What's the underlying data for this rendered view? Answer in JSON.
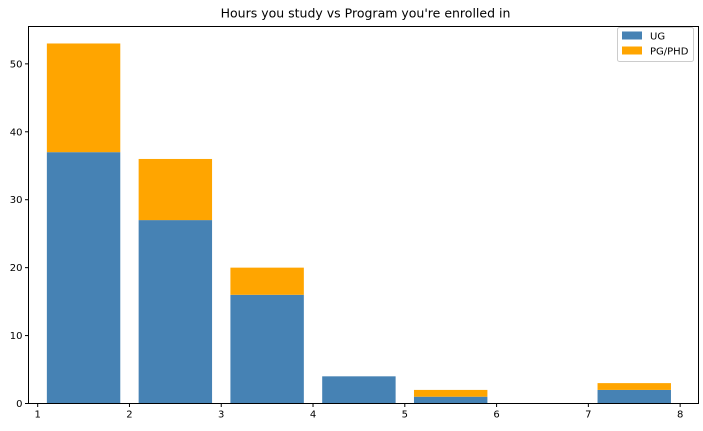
{
  "chart_data": {
    "type": "bar",
    "stacked": true,
    "title": "Hours you study vs Program you're enrolled in",
    "xlabel": "",
    "ylabel": "",
    "xlim": [
      0.9,
      8.2
    ],
    "ylim": [
      0,
      55.5
    ],
    "bar_start": [
      1.1,
      2.1,
      3.1,
      4.1,
      5.1,
      6.1,
      7.1
    ],
    "bar_width": 0.8,
    "x_ticks": [
      1,
      2,
      3,
      4,
      5,
      6,
      7,
      8
    ],
    "y_ticks": [
      0,
      10,
      20,
      30,
      40,
      50
    ],
    "series": [
      {
        "name": "UG",
        "color": "#4682b4",
        "values": [
          37,
          27,
          16,
          4,
          1,
          0,
          2
        ]
      },
      {
        "name": "PG/PHD",
        "color": "#ffa500",
        "values": [
          16,
          9,
          4,
          0,
          1,
          0,
          1
        ]
      }
    ],
    "legend_position": "top-right",
    "grid": false
  }
}
